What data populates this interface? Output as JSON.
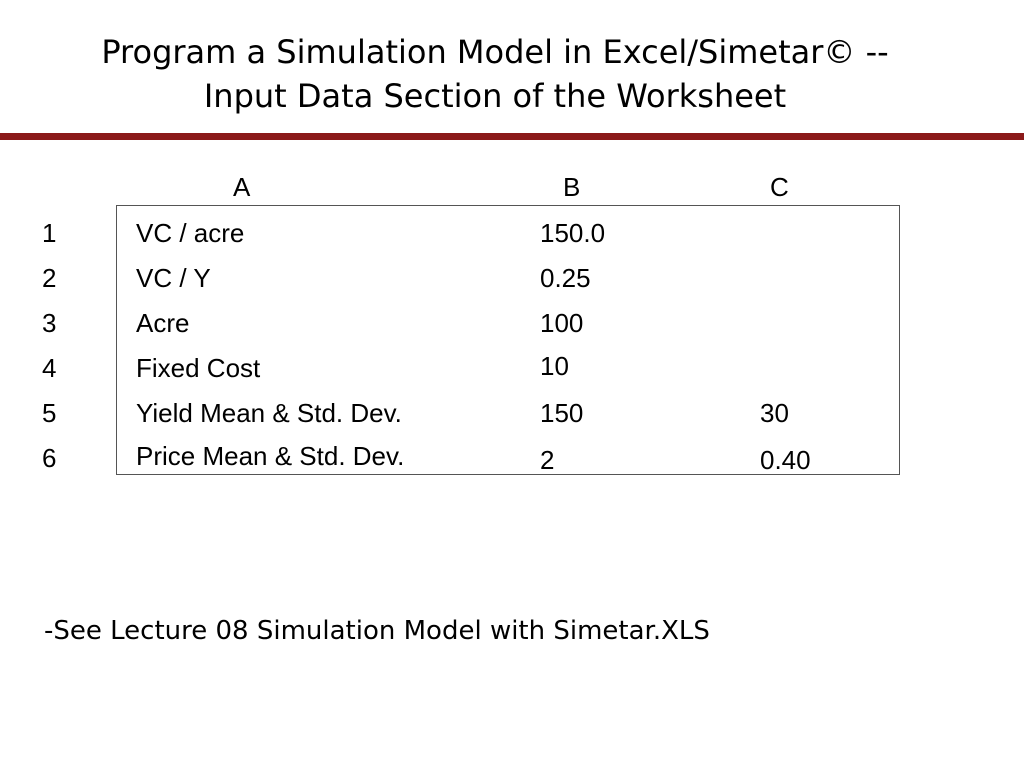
{
  "title": {
    "line1": "Program a Simulation Model in Excel/Simetar© --",
    "line2": "Input Data Section of the Worksheet"
  },
  "columns": [
    "A",
    "B",
    "C"
  ],
  "rows": [
    {
      "num": "1",
      "a": "VC / acre",
      "b": "150.0",
      "c": ""
    },
    {
      "num": "2",
      "a": "VC / Y",
      "b": "0.25",
      "c": ""
    },
    {
      "num": "3",
      "a": "Acre",
      "b": "100",
      "c": ""
    },
    {
      "num": "4",
      "a": "Fixed Cost",
      "b": "10",
      "c": ""
    },
    {
      "num": "5",
      "a": "Yield Mean & Std. Dev.",
      "b": "150",
      "c": "30"
    },
    {
      "num": "6",
      "a": "Price Mean & Std. Dev.",
      "b": "2",
      "c": "0.40"
    }
  ],
  "footer": {
    "note": "-See Lecture 08 Simulation Model with Simetar.XLS"
  },
  "colors": {
    "rule": "#8b1a1a",
    "text": "#000000",
    "background": "#ffffff"
  }
}
